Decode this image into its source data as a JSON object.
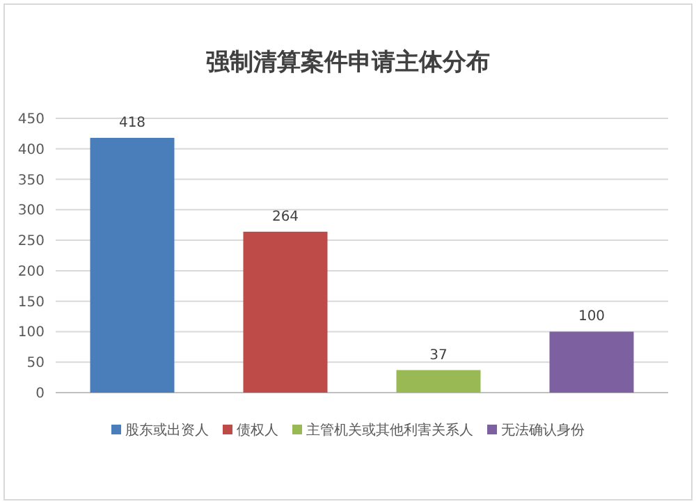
{
  "chart_data": {
    "type": "bar",
    "title": "强制清算案件申请主体分布",
    "categories": [
      null
    ],
    "series": [
      {
        "name": "股东或出资人",
        "color": "#4a7ebb",
        "values": [
          418
        ]
      },
      {
        "name": "债权人",
        "color": "#be4b48",
        "values": [
          264
        ]
      },
      {
        "name": "主管机关或其他利害关系人",
        "color": "#98b954",
        "values": [
          37
        ]
      },
      {
        "name": "无法确认身份",
        "color": "#7d60a0",
        "values": [
          100
        ]
      }
    ],
    "ylim": [
      0,
      450
    ],
    "yticks": [
      0,
      50,
      100,
      150,
      200,
      250,
      300,
      350,
      400,
      450
    ],
    "grid": "y",
    "legend": "bottom",
    "tick_labels": "y",
    "data_labels": true
  }
}
